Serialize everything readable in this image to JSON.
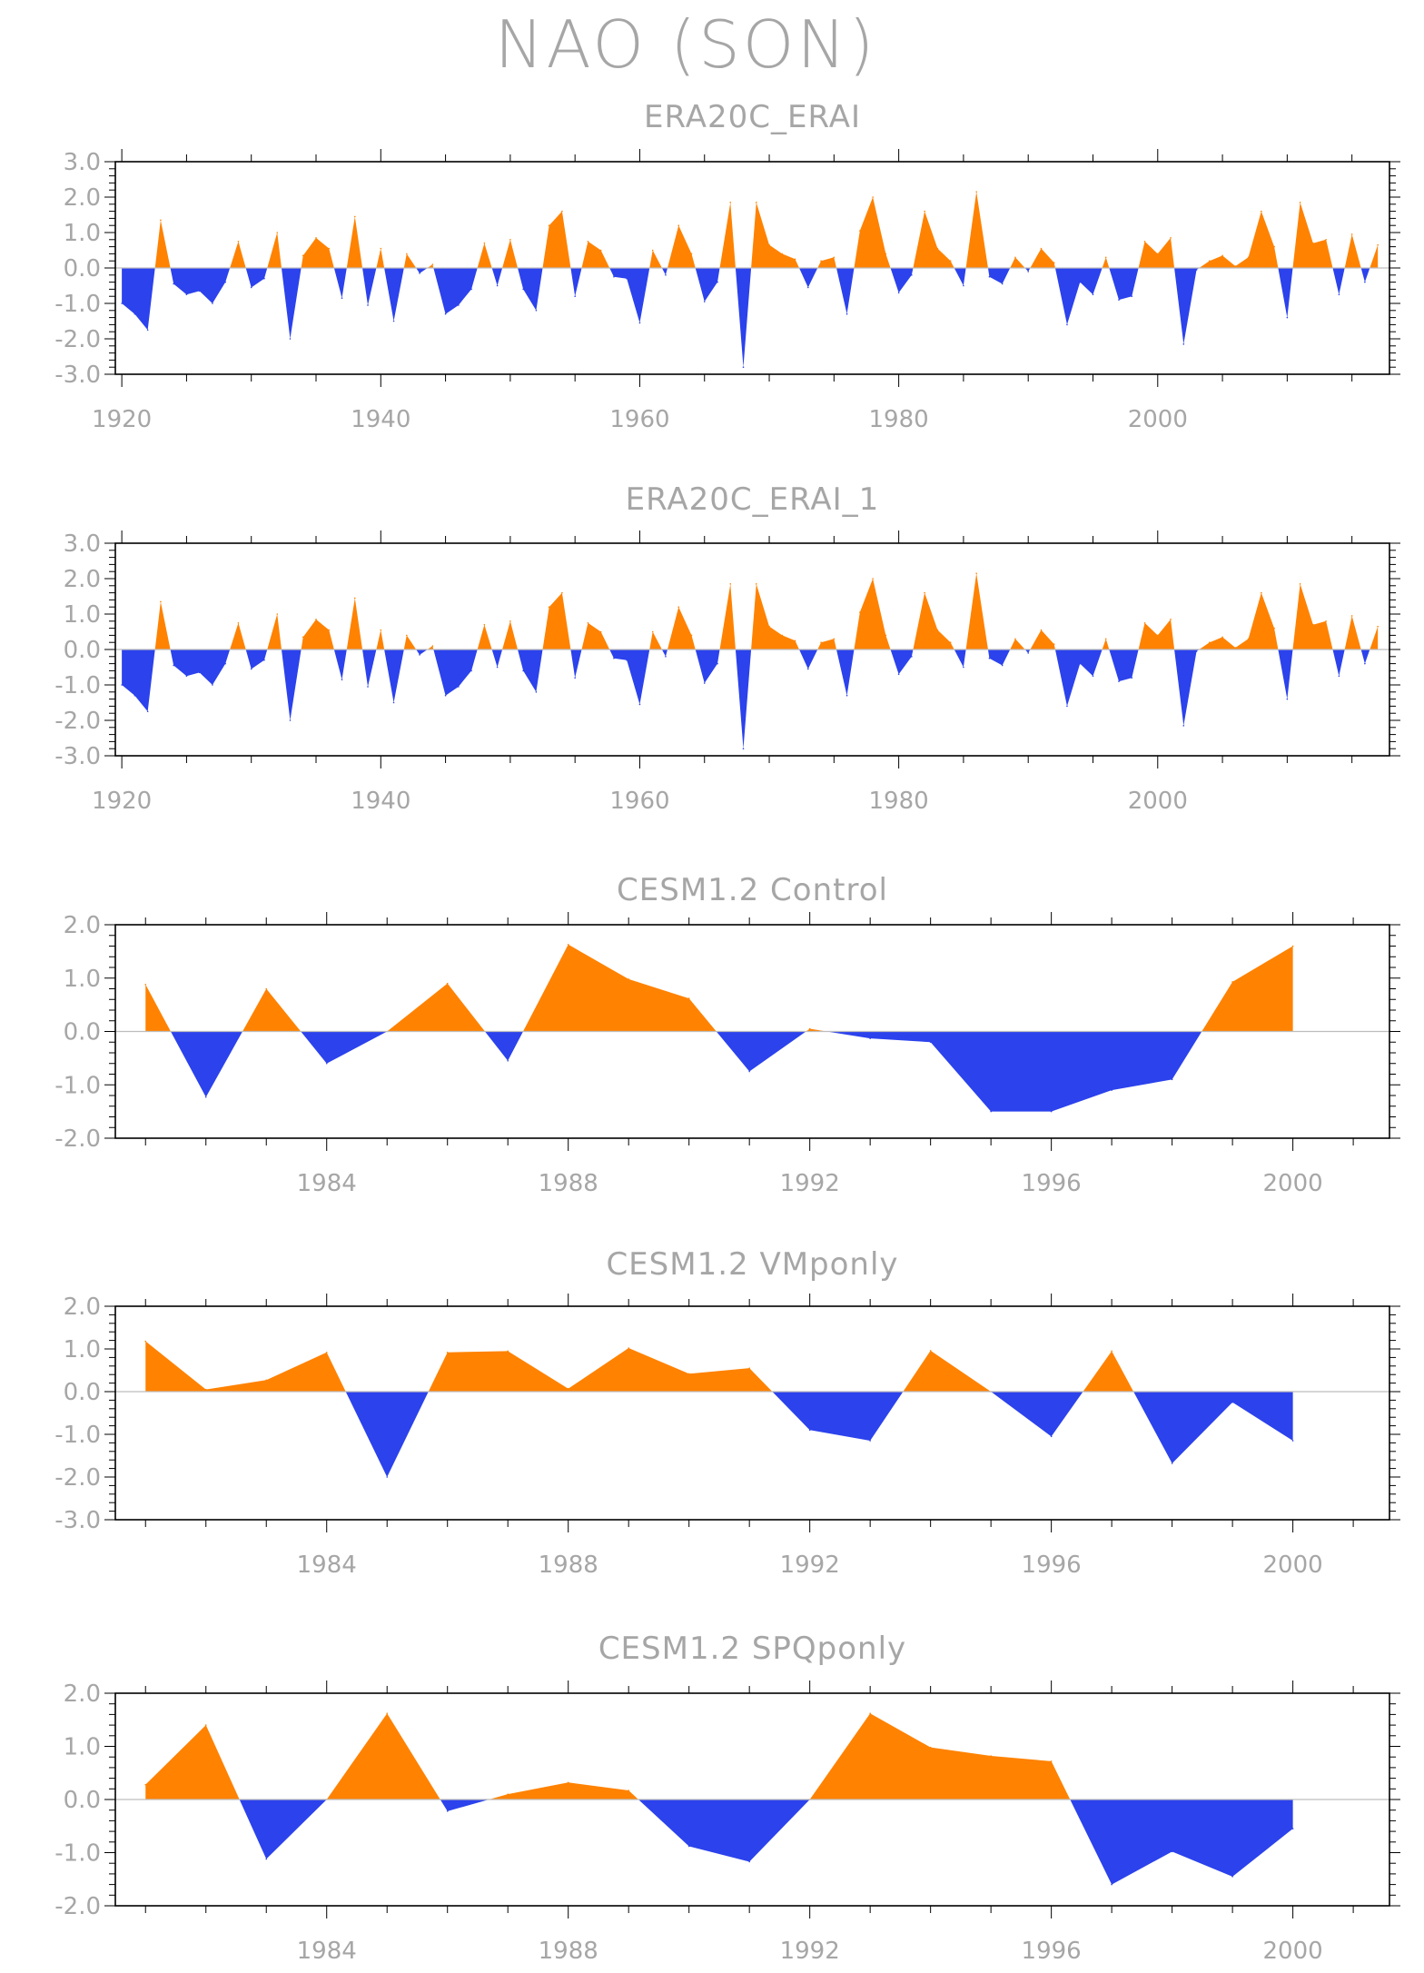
{
  "figure": {
    "title": "NAO (SON)"
  },
  "colors": {
    "positive": "#ff8200",
    "negative": "#2b42ec",
    "axis": "#000000",
    "text": "#a6a6a6",
    "zero_line": "#bdbdbd"
  },
  "chart_data": [
    {
      "type": "area",
      "title": "ERA20C_ERAI",
      "xlabel": "",
      "ylabel": "",
      "xlim": [
        1919.5,
        2017.9
      ],
      "ylim": [
        -3.0,
        3.0
      ],
      "x_ticks": [
        1920,
        1940,
        1960,
        1980,
        2000
      ],
      "x_tick_labels": [
        "1920",
        "1940",
        "1960",
        "1980",
        "2000"
      ],
      "y_ticks": [
        3.0,
        2.0,
        1.0,
        0.0,
        -1.0,
        -2.0,
        -3.0
      ],
      "y_tick_labels": [
        "3.0",
        "2.0",
        "1.0",
        "0.0",
        "-1.0",
        "-2.0",
        "-3.0"
      ],
      "grid": false,
      "x": [
        1920,
        1921,
        1922,
        1923,
        1924,
        1925,
        1926,
        1927,
        1928,
        1929,
        1930,
        1931,
        1932,
        1933,
        1934,
        1935,
        1936,
        1937,
        1938,
        1939,
        1940,
        1941,
        1942,
        1943,
        1944,
        1945,
        1946,
        1947,
        1948,
        1949,
        1950,
        1951,
        1952,
        1953,
        1954,
        1955,
        1956,
        1957,
        1958,
        1959,
        1960,
        1961,
        1962,
        1963,
        1964,
        1965,
        1966,
        1967,
        1968,
        1969,
        1970,
        1971,
        1972,
        1973,
        1974,
        1975,
        1976,
        1977,
        1978,
        1979,
        1980,
        1981,
        1982,
        1983,
        1984,
        1985,
        1986,
        1987,
        1988,
        1989,
        1990,
        1991,
        1992,
        1993,
        1994,
        1995,
        1996,
        1997,
        1998,
        1999,
        2000,
        2001,
        2002,
        2003,
        2004,
        2005,
        2006,
        2007,
        2008,
        2009,
        2010,
        2011,
        2012,
        2013,
        2014,
        2015,
        2016,
        2017
      ],
      "series": [
        {
          "values": [
            -1.0,
            -1.3,
            -1.75,
            1.35,
            -0.45,
            -0.75,
            -0.65,
            -1.0,
            -0.4,
            0.75,
            -0.55,
            -0.3,
            1.0,
            -2.0,
            0.35,
            0.85,
            0.55,
            -0.85,
            1.45,
            -1.05,
            0.55,
            -1.5,
            0.4,
            -0.15,
            0.1,
            -1.3,
            -1.05,
            -0.6,
            0.7,
            -0.5,
            0.8,
            -0.6,
            -1.2,
            1.2,
            1.6,
            -0.8,
            0.75,
            0.5,
            -0.25,
            -0.3,
            -1.55,
            0.5,
            -0.2,
            1.2,
            0.4,
            -0.95,
            -0.4,
            1.85,
            -2.8,
            1.85,
            0.65,
            0.4,
            0.25,
            -0.55,
            0.2,
            0.3,
            -1.3,
            1.05,
            2.0,
            0.4,
            -0.7,
            -0.2,
            1.6,
            0.55,
            0.2,
            -0.5,
            2.15,
            -0.25,
            -0.45,
            0.3,
            -0.1,
            0.55,
            0.15,
            -1.6,
            -0.4,
            -0.75,
            0.3,
            -0.9,
            -0.8,
            0.75,
            0.4,
            0.85,
            -2.15,
            -0.05,
            0.2,
            0.35,
            0.05,
            0.3,
            1.6,
            0.6,
            -1.4,
            1.85,
            0.7,
            0.8,
            -0.75,
            0.95,
            -0.4,
            0.65
          ]
        }
      ]
    },
    {
      "type": "area",
      "title": "ERA20C_ERAI_1",
      "xlabel": "",
      "ylabel": "",
      "xlim": [
        1919.5,
        2017.9
      ],
      "ylim": [
        -3.0,
        3.0
      ],
      "x_ticks": [
        1920,
        1940,
        1960,
        1980,
        2000
      ],
      "x_tick_labels": [
        "1920",
        "1940",
        "1960",
        "1980",
        "2000"
      ],
      "y_ticks": [
        3.0,
        2.0,
        1.0,
        0.0,
        -1.0,
        -2.0,
        -3.0
      ],
      "y_tick_labels": [
        "3.0",
        "2.0",
        "1.0",
        "0.0",
        "-1.0",
        "-2.0",
        "-3.0"
      ],
      "grid": false,
      "x": [
        1920,
        1921,
        1922,
        1923,
        1924,
        1925,
        1926,
        1927,
        1928,
        1929,
        1930,
        1931,
        1932,
        1933,
        1934,
        1935,
        1936,
        1937,
        1938,
        1939,
        1940,
        1941,
        1942,
        1943,
        1944,
        1945,
        1946,
        1947,
        1948,
        1949,
        1950,
        1951,
        1952,
        1953,
        1954,
        1955,
        1956,
        1957,
        1958,
        1959,
        1960,
        1961,
        1962,
        1963,
        1964,
        1965,
        1966,
        1967,
        1968,
        1969,
        1970,
        1971,
        1972,
        1973,
        1974,
        1975,
        1976,
        1977,
        1978,
        1979,
        1980,
        1981,
        1982,
        1983,
        1984,
        1985,
        1986,
        1987,
        1988,
        1989,
        1990,
        1991,
        1992,
        1993,
        1994,
        1995,
        1996,
        1997,
        1998,
        1999,
        2000,
        2001,
        2002,
        2003,
        2004,
        2005,
        2006,
        2007,
        2008,
        2009,
        2010,
        2011,
        2012,
        2013,
        2014,
        2015,
        2016,
        2017
      ],
      "series": [
        {
          "values": [
            -1.0,
            -1.3,
            -1.75,
            1.35,
            -0.45,
            -0.75,
            -0.65,
            -1.0,
            -0.4,
            0.75,
            -0.55,
            -0.3,
            1.0,
            -2.0,
            0.35,
            0.85,
            0.55,
            -0.85,
            1.45,
            -1.05,
            0.55,
            -1.5,
            0.4,
            -0.15,
            0.1,
            -1.3,
            -1.05,
            -0.6,
            0.7,
            -0.5,
            0.8,
            -0.6,
            -1.2,
            1.2,
            1.6,
            -0.8,
            0.75,
            0.5,
            -0.25,
            -0.3,
            -1.55,
            0.5,
            -0.2,
            1.2,
            0.4,
            -0.95,
            -0.4,
            1.85,
            -2.8,
            1.85,
            0.65,
            0.4,
            0.25,
            -0.55,
            0.2,
            0.3,
            -1.3,
            1.05,
            2.0,
            0.4,
            -0.7,
            -0.2,
            1.6,
            0.55,
            0.2,
            -0.5,
            2.15,
            -0.25,
            -0.45,
            0.3,
            -0.1,
            0.55,
            0.15,
            -1.6,
            -0.4,
            -0.75,
            0.3,
            -0.9,
            -0.8,
            0.75,
            0.4,
            0.85,
            -2.15,
            -0.05,
            0.2,
            0.35,
            0.05,
            0.3,
            1.6,
            0.6,
            -1.4,
            1.85,
            0.7,
            0.8,
            -0.75,
            0.95,
            -0.4,
            0.65
          ]
        }
      ]
    },
    {
      "type": "area",
      "title": "CESM1.2  Control",
      "xlabel": "",
      "ylabel": "",
      "xlim": [
        1980.5,
        2001.6
      ],
      "ylim": [
        -2.0,
        2.0
      ],
      "x_ticks": [
        1984,
        1988,
        1992,
        1996,
        2000
      ],
      "x_tick_labels": [
        "1984",
        "1988",
        "1992",
        "1996",
        "2000"
      ],
      "y_ticks": [
        2.0,
        1.0,
        0.0,
        -1.0,
        -2.0
      ],
      "y_tick_labels": [
        "2.0",
        "1.0",
        "0.0",
        "-1.0",
        "-2.0"
      ],
      "grid": false,
      "x": [
        1981,
        1982,
        1983,
        1984,
        1985,
        1986,
        1987,
        1988,
        1989,
        1990,
        1991,
        1992,
        1993,
        1994,
        1995,
        1996,
        1997,
        1998,
        1999,
        2000
      ],
      "series": [
        {
          "values": [
            0.88,
            -1.23,
            0.8,
            -0.6,
            0.0,
            0.9,
            -0.55,
            1.63,
            0.98,
            0.62,
            -0.75,
            0.05,
            -0.13,
            -0.2,
            -1.5,
            -1.5,
            -1.1,
            -0.9,
            0.93,
            1.6
          ]
        }
      ]
    },
    {
      "type": "area",
      "title": "CESM1.2  VMponly",
      "xlabel": "",
      "ylabel": "",
      "xlim": [
        1980.5,
        2001.6
      ],
      "ylim": [
        -3.0,
        2.0
      ],
      "x_ticks": [
        1984,
        1988,
        1992,
        1996,
        2000
      ],
      "x_tick_labels": [
        "1984",
        "1988",
        "1992",
        "1996",
        "2000"
      ],
      "y_ticks": [
        2.0,
        1.0,
        0.0,
        -1.0,
        -2.0,
        -3.0
      ],
      "y_tick_labels": [
        "2.0",
        "1.0",
        "0.0",
        "-1.0",
        "-2.0",
        "-3.0"
      ],
      "grid": false,
      "x": [
        1981,
        1982,
        1983,
        1984,
        1985,
        1986,
        1987,
        1988,
        1989,
        1990,
        1991,
        1992,
        1993,
        1994,
        1995,
        1996,
        1997,
        1998,
        1999,
        2000
      ],
      "series": [
        {
          "values": [
            1.18,
            0.05,
            0.27,
            0.92,
            -2.0,
            0.92,
            0.95,
            0.07,
            1.02,
            0.42,
            0.55,
            -0.9,
            -1.15,
            0.96,
            0.0,
            -1.05,
            0.95,
            -1.68,
            -0.25,
            -1.15
          ]
        }
      ]
    },
    {
      "type": "area",
      "title": "CESM1.2  SPQponly",
      "xlabel": "",
      "ylabel": "",
      "xlim": [
        1980.5,
        2001.6
      ],
      "ylim": [
        -2.0,
        2.0
      ],
      "x_ticks": [
        1984,
        1988,
        1992,
        1996,
        2000
      ],
      "x_tick_labels": [
        "1984",
        "1988",
        "1992",
        "1996",
        "2000"
      ],
      "y_ticks": [
        2.0,
        1.0,
        0.0,
        -1.0,
        -2.0
      ],
      "y_tick_labels": [
        "2.0",
        "1.0",
        "0.0",
        "-1.0",
        "-2.0"
      ],
      "grid": false,
      "x": [
        1981,
        1982,
        1983,
        1984,
        1985,
        1986,
        1987,
        1988,
        1989,
        1990,
        1991,
        1992,
        1993,
        1994,
        1995,
        1996,
        1997,
        1998,
        1999,
        2000
      ],
      "series": [
        {
          "values": [
            0.28,
            1.4,
            -1.12,
            0.0,
            1.62,
            -0.22,
            0.1,
            0.32,
            0.17,
            -0.88,
            -1.17,
            0.0,
            1.62,
            0.98,
            0.82,
            0.72,
            -1.6,
            -0.98,
            -1.45,
            -0.55
          ]
        }
      ]
    }
  ]
}
